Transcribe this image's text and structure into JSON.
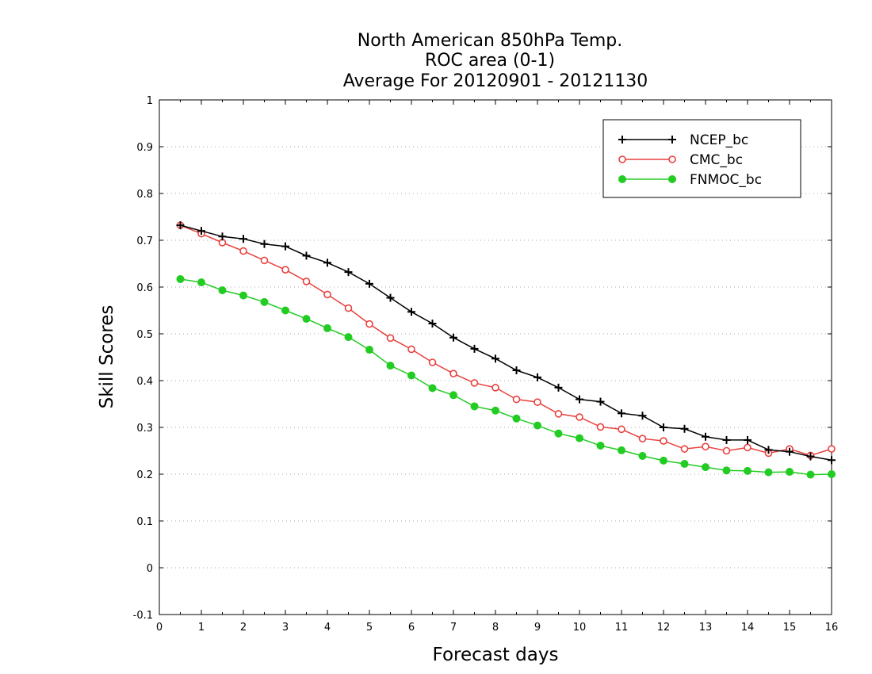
{
  "chart_data": {
    "type": "line",
    "title": [
      "North American 850hPa Temp.",
      "ROC area (0-1)",
      "Average For 20120901 - 20121130"
    ],
    "xlabel": "Forecast days",
    "ylabel": "Skill Scores",
    "xlim": [
      0,
      16
    ],
    "ylim": [
      -0.1,
      1
    ],
    "xticks": [
      0,
      1,
      2,
      3,
      4,
      5,
      6,
      7,
      8,
      9,
      10,
      11,
      12,
      13,
      14,
      15,
      16
    ],
    "yticks": [
      -0.1,
      0,
      0.1,
      0.2,
      0.3,
      0.4,
      0.5,
      0.6,
      0.7,
      0.8,
      0.9,
      1
    ],
    "ytick_labels": [
      "-0.1",
      "0",
      "0.1",
      "0.2",
      "0.3",
      "0.4",
      "0.5",
      "0.6",
      "0.7",
      "0.8",
      "0.9",
      "1"
    ],
    "grid": "horizontal dotted",
    "legend_position": "top-right",
    "x": [
      0.5,
      1,
      1.5,
      2,
      2.5,
      3,
      3.5,
      4,
      4.5,
      5,
      5.5,
      6,
      6.5,
      7,
      7.5,
      8,
      8.5,
      9,
      9.5,
      10,
      10.5,
      11,
      11.5,
      12,
      12.5,
      13,
      13.5,
      14,
      14.5,
      15,
      15.5,
      16
    ],
    "series": [
      {
        "name": "NCEP_bc",
        "color": "#000000",
        "marker": "plus",
        "values": [
          0.732,
          0.72,
          0.708,
          0.703,
          0.692,
          0.687,
          0.667,
          0.652,
          0.632,
          0.607,
          0.577,
          0.547,
          0.522,
          0.492,
          0.468,
          0.447,
          0.422,
          0.407,
          0.385,
          0.36,
          0.355,
          0.33,
          0.325,
          0.3,
          0.297,
          0.28,
          0.273,
          0.273,
          0.252,
          0.248,
          0.238,
          0.23
        ]
      },
      {
        "name": "CMC_bc",
        "color": "#e8413f",
        "marker": "open-circle",
        "values": [
          0.732,
          0.714,
          0.695,
          0.677,
          0.657,
          0.637,
          0.612,
          0.584,
          0.555,
          0.521,
          0.491,
          0.467,
          0.439,
          0.415,
          0.395,
          0.385,
          0.36,
          0.354,
          0.329,
          0.322,
          0.301,
          0.296,
          0.276,
          0.271,
          0.254,
          0.259,
          0.25,
          0.257,
          0.245,
          0.254,
          0.24,
          0.254
        ]
      },
      {
        "name": "FNMOC_bc",
        "color": "#22cc22",
        "marker": "filled-circle",
        "values": [
          0.617,
          0.61,
          0.593,
          0.582,
          0.568,
          0.55,
          0.532,
          0.512,
          0.493,
          0.466,
          0.432,
          0.411,
          0.384,
          0.369,
          0.345,
          0.336,
          0.319,
          0.304,
          0.287,
          0.277,
          0.261,
          0.251,
          0.239,
          0.229,
          0.222,
          0.215,
          0.208,
          0.207,
          0.204,
          0.205,
          0.199,
          0.2
        ]
      }
    ]
  }
}
